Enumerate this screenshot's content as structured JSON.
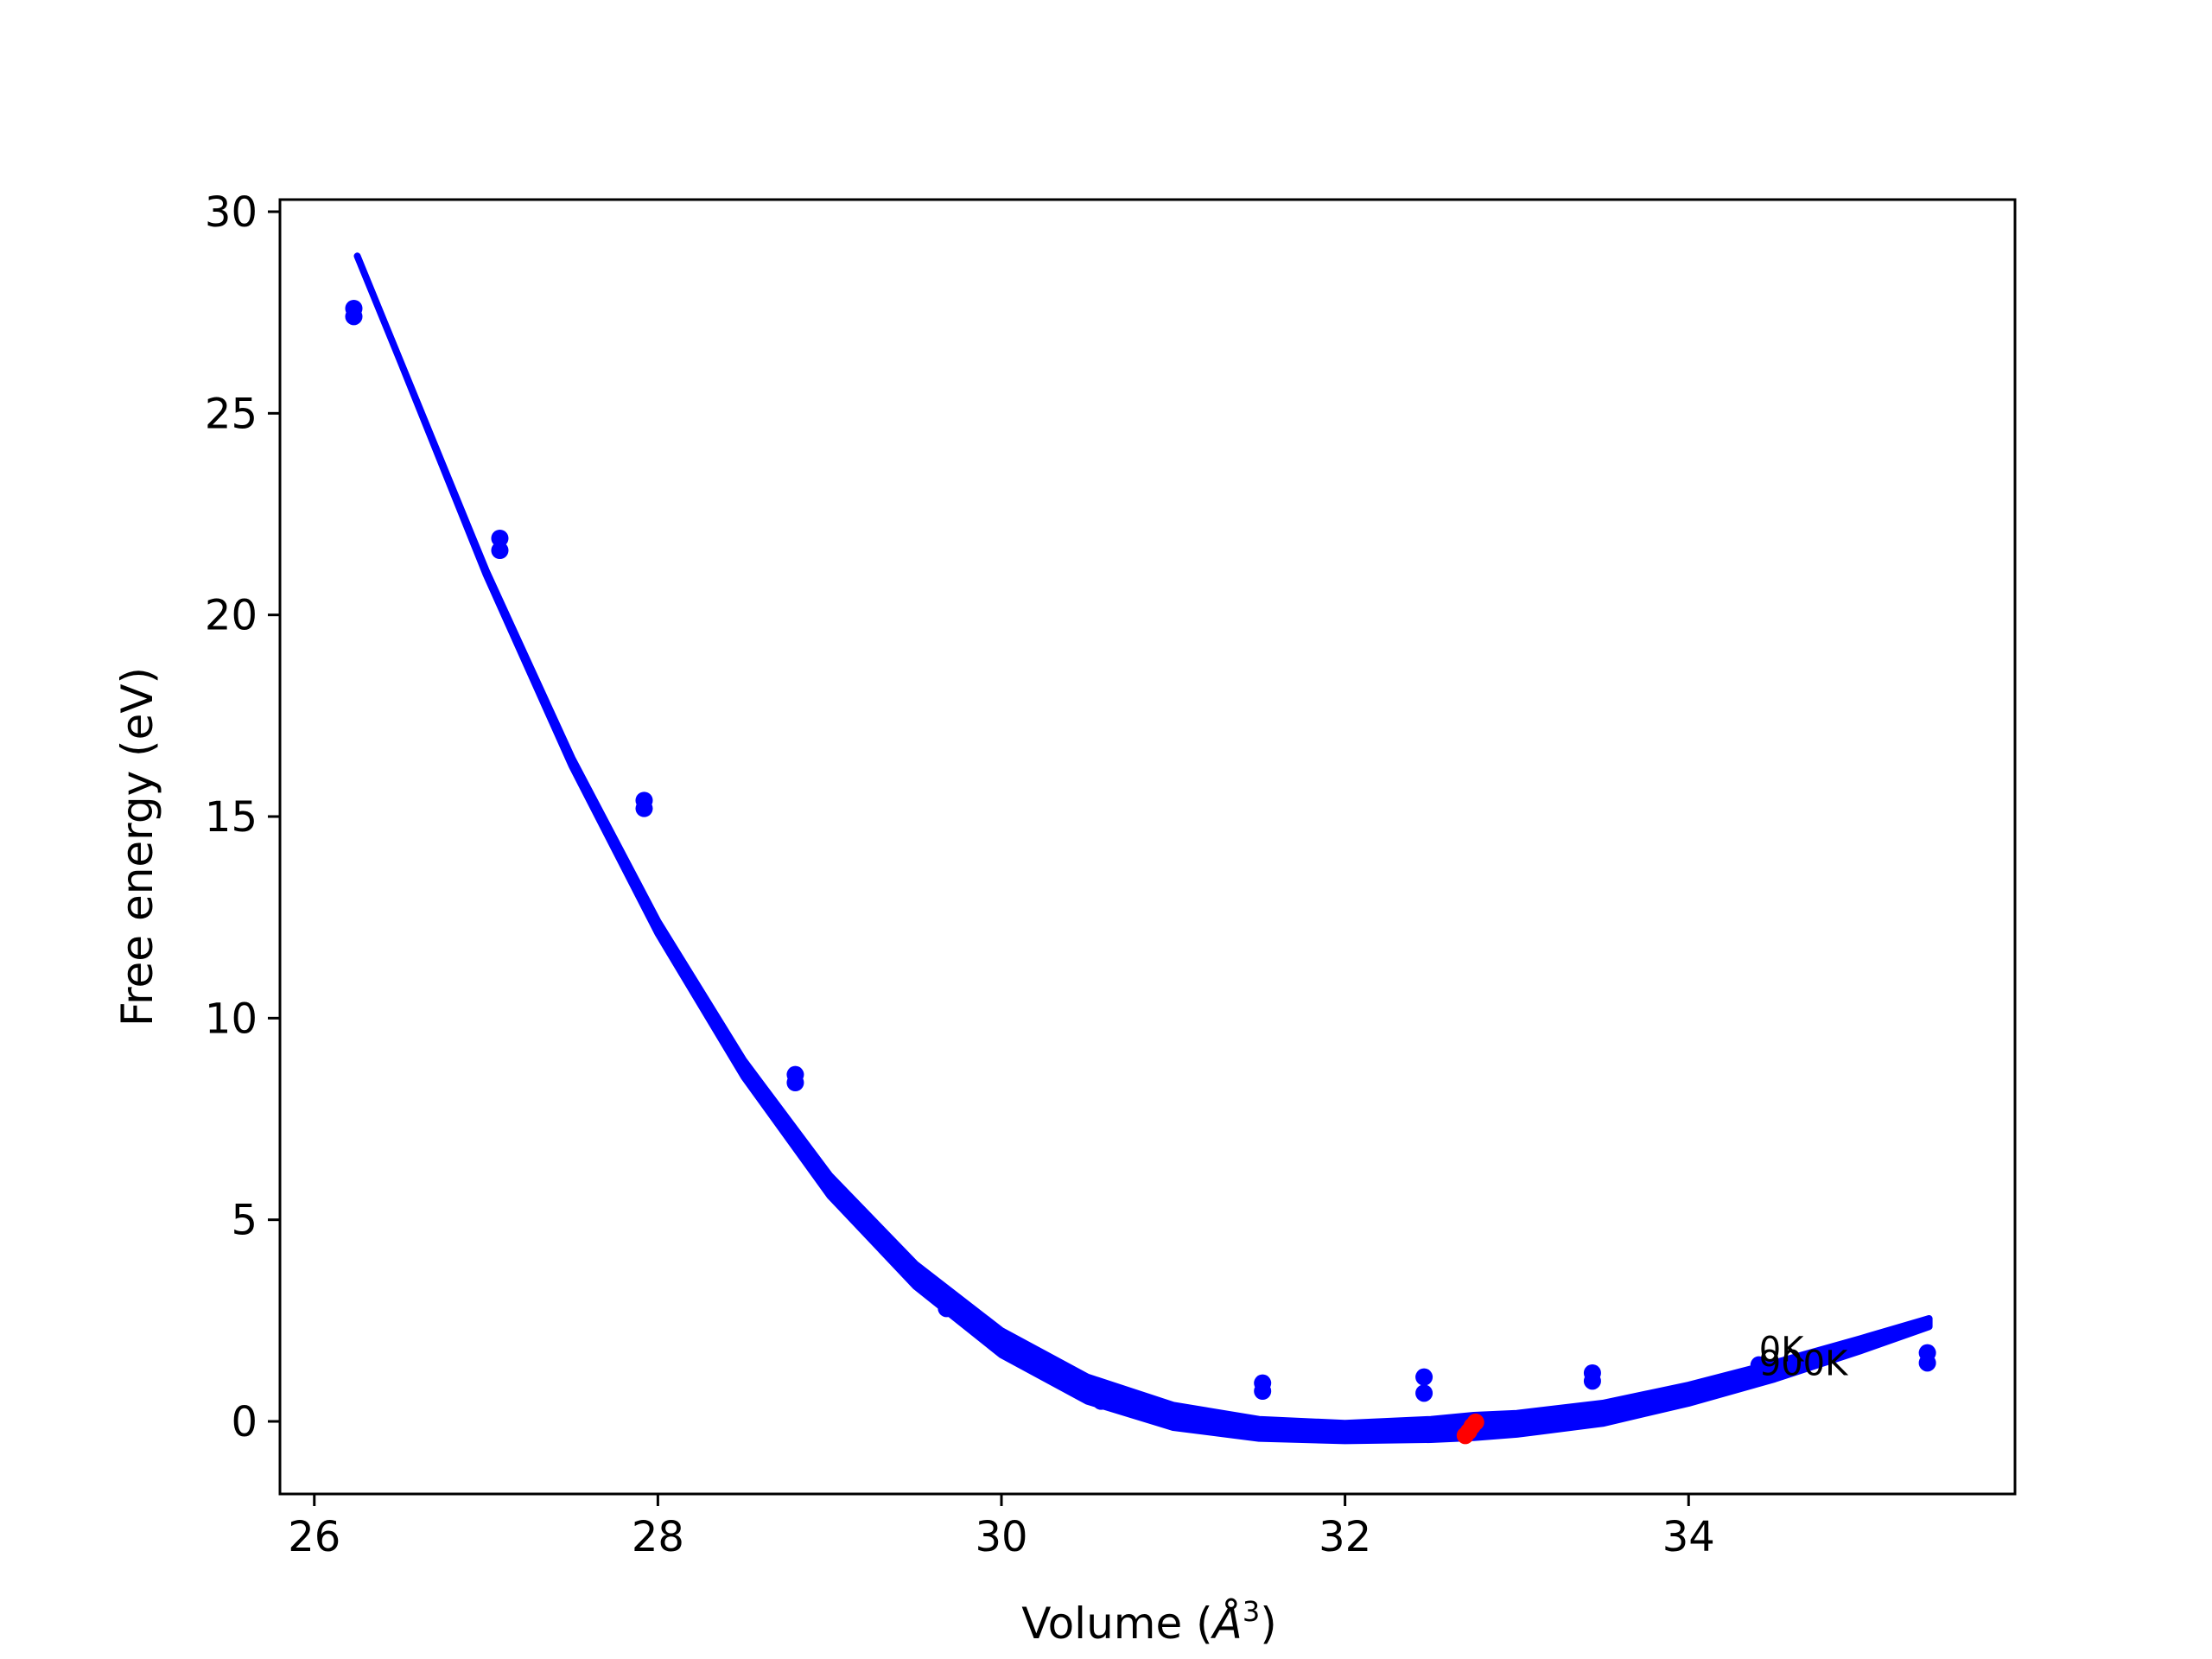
{
  "chart_data": {
    "type": "scatter",
    "title": "",
    "xlabel_main": "Volume (",
    "xlabel_italic": "Å",
    "xlabel_sup": "3",
    "xlabel_end": ")",
    "ylabel": "Free energy (eV)",
    "xlim": [
      25.8,
      35.9
    ],
    "ylim": [
      -1.8,
      30.3
    ],
    "xticks": [
      26,
      28,
      30,
      32,
      34
    ],
    "yticks": [
      0,
      5,
      10,
      15,
      20,
      25,
      30
    ],
    "grid": false,
    "colors": {
      "points": "#0000ff",
      "fit": "#0000ff",
      "minimum": "#ff0000"
    },
    "series": [
      {
        "kind": "points",
        "x": [
          26.23,
          26.23,
          27.08,
          27.08,
          27.92,
          27.92,
          28.8,
          28.8,
          29.68,
          29.68,
          30.58,
          30.58,
          31.52,
          31.52,
          32.46,
          32.46,
          33.44,
          33.44,
          34.41,
          34.41,
          35.39,
          35.39
        ],
        "y": [
          27.6,
          27.4,
          21.9,
          21.6,
          15.4,
          15.2,
          8.6,
          8.4,
          3.1,
          2.8,
          0.8,
          0.5,
          0.95,
          0.75,
          1.1,
          0.7,
          1.2,
          1.0,
          1.4,
          1.2,
          1.7,
          1.45
        ]
      },
      {
        "kind": "fit-band",
        "x": [
          26.25,
          26.5,
          27.0,
          27.5,
          28.0,
          28.5,
          29.0,
          29.5,
          30.0,
          30.5,
          31.0,
          31.5,
          32.0,
          32.5,
          32.75,
          33.0,
          33.5,
          34.0,
          34.5,
          35.0,
          35.4
        ],
        "y_upper": [
          28.9,
          26.3,
          21.1,
          16.45,
          12.4,
          8.95,
          6.1,
          3.9,
          2.25,
          1.1,
          0.4,
          0.05,
          -0.05,
          0.05,
          0.15,
          0.2,
          0.45,
          0.9,
          1.45,
          2.05,
          2.55
        ],
        "y_lower": [
          28.9,
          26.3,
          21.0,
          16.25,
          12.1,
          8.55,
          5.6,
          3.35,
          1.65,
          0.5,
          -0.15,
          -0.42,
          -0.48,
          -0.45,
          -0.4,
          -0.32,
          -0.05,
          0.45,
          1.05,
          1.75,
          2.35
        ]
      },
      {
        "kind": "minimum",
        "x": [
          32.7,
          32.72,
          32.74,
          32.76
        ],
        "y": [
          -0.35,
          -0.25,
          -0.12,
          -0.02
        ]
      }
    ],
    "annotations": [
      {
        "text": "0K",
        "x": 34.41,
        "y": 1.75
      },
      {
        "text": "900K",
        "x": 34.41,
        "y": 1.4
      }
    ]
  }
}
